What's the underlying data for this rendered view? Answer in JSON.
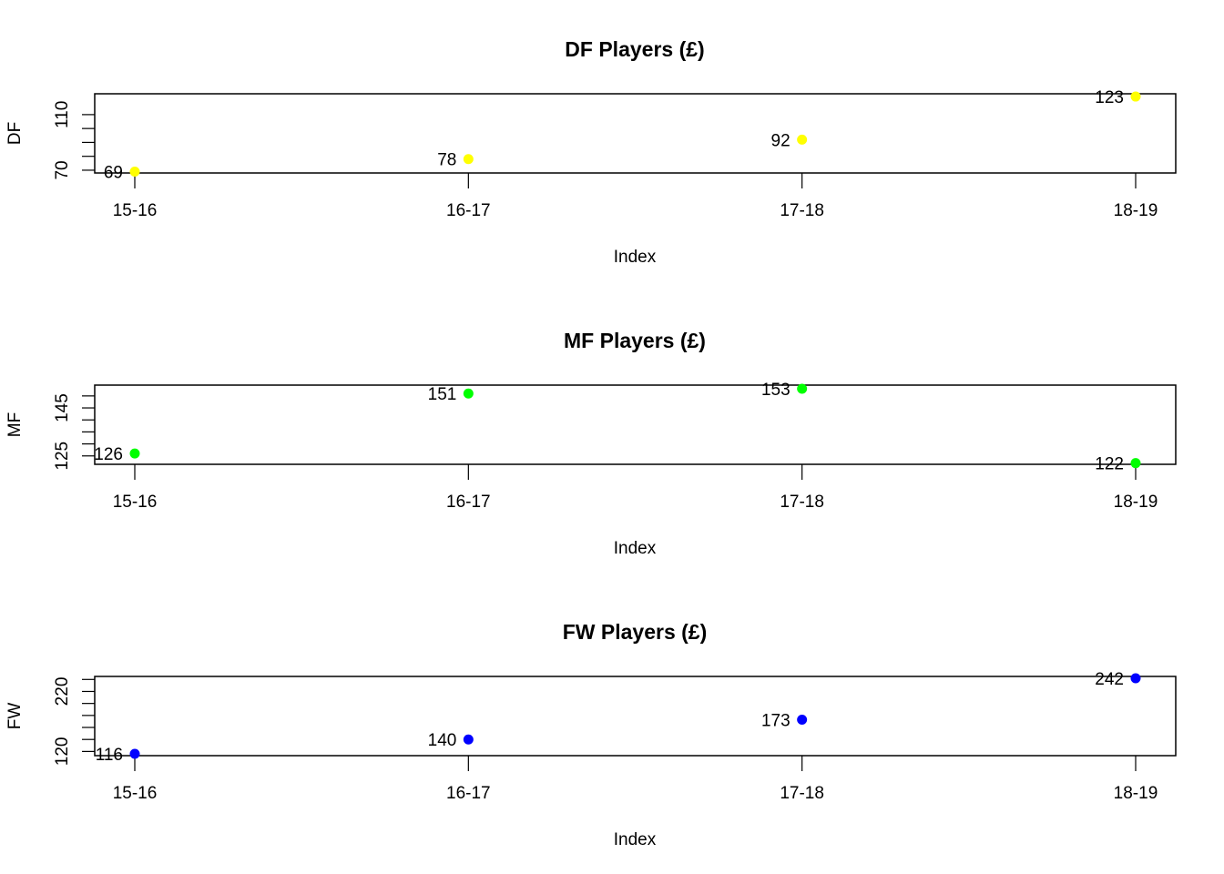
{
  "chart_data": [
    {
      "type": "scatter",
      "title": "DF Players (£)",
      "xlabel": "Index",
      "ylabel": "DF",
      "categories": [
        "15-16",
        "16-17",
        "17-18",
        "18-19"
      ],
      "series": [
        {
          "values": [
            69,
            78,
            92,
            123
          ],
          "color": "#ffff00"
        }
      ],
      "data_labels": [
        "69",
        "78",
        "92",
        "123"
      ],
      "yticks": [
        70,
        110
      ],
      "yticks_minor": [
        70,
        80,
        90,
        100,
        110
      ],
      "ylim": [
        68,
        125
      ],
      "grid": false,
      "legend": "none"
    },
    {
      "type": "scatter",
      "title": "MF Players (£)",
      "xlabel": "Index",
      "ylabel": "MF",
      "categories": [
        "15-16",
        "16-17",
        "17-18",
        "18-19"
      ],
      "series": [
        {
          "values": [
            126,
            151,
            153,
            122
          ],
          "color": "#00ff00"
        }
      ],
      "data_labels": [
        "126",
        "151",
        "153",
        "122"
      ],
      "yticks": [
        125,
        145
      ],
      "yticks_minor": [
        125,
        130,
        135,
        140,
        145,
        150
      ],
      "ylim": [
        121.5,
        154.5
      ],
      "grid": false,
      "legend": "none"
    },
    {
      "type": "scatter",
      "title": "FW Players (£)",
      "xlabel": "Index",
      "ylabel": "FW",
      "categories": [
        "15-16",
        "16-17",
        "17-18",
        "18-19"
      ],
      "series": [
        {
          "values": [
            116,
            140,
            173,
            242
          ],
          "color": "#0000ff"
        }
      ],
      "data_labels": [
        "116",
        "140",
        "173",
        "242"
      ],
      "yticks": [
        120,
        220
      ],
      "yticks_minor": [
        120,
        140,
        160,
        180,
        200,
        220,
        240
      ],
      "ylim": [
        113,
        245
      ],
      "grid": false,
      "legend": "none"
    }
  ]
}
